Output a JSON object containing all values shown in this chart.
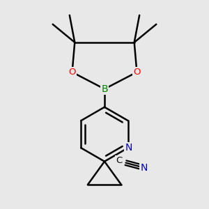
{
  "background_color": "#e8e8e8",
  "bond_color": "#000000",
  "bond_width": 1.8,
  "atom_colors": {
    "B": "#008000",
    "O": "#ff0000",
    "N_ring": "#0000cc",
    "N_cn": "#0000cc",
    "C": "#000000"
  },
  "figsize": [
    3.0,
    3.0
  ],
  "dpi": 100
}
